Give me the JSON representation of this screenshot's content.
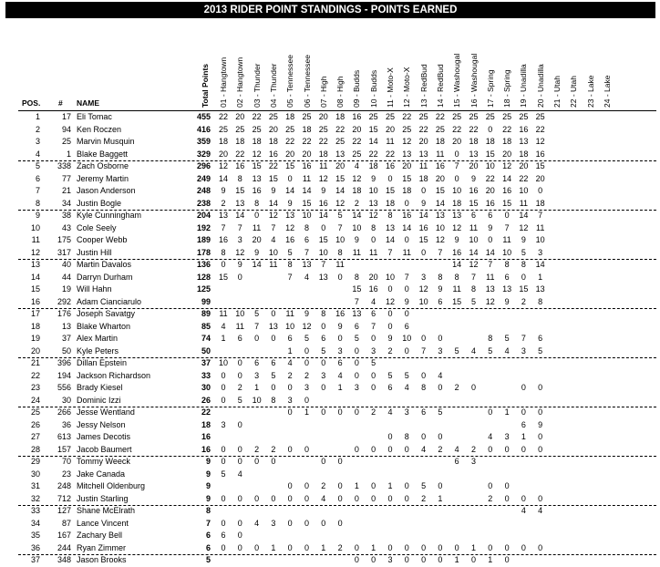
{
  "title": "2013 RIDER POINT STANDINGS  - POINTS EARNED",
  "headers": {
    "pos": "POS.",
    "num": "#",
    "name": "NAME",
    "total": "Total Points"
  },
  "rounds": [
    "01 - Hangtown",
    "02 - Hangtown",
    "03 - Thunder",
    "04 - Thunder",
    "05 - Tennessee",
    "06 - Tennessee",
    "07 - High",
    "08 - High",
    "09 - Budds",
    "10 - Budds",
    "11 - Moto-X",
    "12 - Moto-X",
    "13 - RedBud",
    "14 - RedBud",
    "15 - Washougal",
    "16 - Washougal",
    "17 - Spring",
    "18 - Spring",
    "19 - Unadilla",
    "20 - Unadilla",
    "21 - Utah",
    "22 - Utah",
    "23 - Lake",
    "24 - Lake"
  ],
  "riders": [
    {
      "pos": "1",
      "num": "17",
      "name": "Eli Tomac",
      "total": "455",
      "pts": [
        22,
        20,
        22,
        25,
        18,
        25,
        20,
        18,
        16,
        25,
        25,
        22,
        25,
        22,
        25,
        25,
        25,
        25,
        25,
        25
      ]
    },
    {
      "pos": "2",
      "num": "94",
      "name": "Ken Roczen",
      "total": "416",
      "pts": [
        25,
        25,
        25,
        20,
        25,
        18,
        25,
        22,
        20,
        15,
        20,
        25,
        22,
        25,
        22,
        22,
        0,
        22,
        16,
        22
      ]
    },
    {
      "pos": "3",
      "num": "25",
      "name": "Marvin Musquin",
      "total": "359",
      "pts": [
        18,
        18,
        18,
        18,
        22,
        22,
        22,
        25,
        22,
        14,
        11,
        12,
        20,
        18,
        20,
        18,
        18,
        18,
        13,
        12
      ]
    },
    {
      "pos": "4",
      "num": "1",
      "name": "Blake Baggett",
      "total": "329",
      "pts": [
        20,
        22,
        12,
        16,
        20,
        20,
        18,
        13,
        25,
        22,
        22,
        13,
        13,
        11,
        0,
        13,
        15,
        20,
        18,
        16
      ]
    },
    {
      "pos": "5",
      "num": "338",
      "name": "Zach Osborne",
      "total": "296",
      "pts": [
        12,
        16,
        15,
        22,
        15,
        16,
        11,
        20,
        4,
        18,
        16,
        20,
        11,
        16,
        7,
        20,
        10,
        12,
        20,
        15
      ]
    },
    {
      "pos": "6",
      "num": "77",
      "name": "Jeremy Martin",
      "total": "249",
      "pts": [
        14,
        8,
        13,
        15,
        0,
        11,
        12,
        15,
        12,
        9,
        0,
        15,
        18,
        20,
        0,
        9,
        22,
        14,
        22,
        20
      ]
    },
    {
      "pos": "7",
      "num": "21",
      "name": "Jason Anderson",
      "total": "248",
      "pts": [
        9,
        15,
        16,
        9,
        14,
        14,
        9,
        14,
        18,
        10,
        15,
        18,
        0,
        15,
        10,
        16,
        20,
        16,
        10,
        0
      ]
    },
    {
      "pos": "8",
      "num": "34",
      "name": "Justin Bogle",
      "total": "238",
      "pts": [
        2,
        13,
        8,
        14,
        9,
        15,
        16,
        12,
        2,
        13,
        18,
        0,
        9,
        14,
        18,
        15,
        16,
        15,
        11,
        18
      ]
    },
    {
      "pos": "9",
      "num": "38",
      "name": "Kyle Cunningham",
      "total": "204",
      "pts": [
        13,
        14,
        0,
        12,
        13,
        10,
        14,
        5,
        14,
        12,
        8,
        16,
        14,
        13,
        13,
        6,
        6,
        0,
        14,
        7
      ]
    },
    {
      "pos": "10",
      "num": "43",
      "name": "Cole Seely",
      "total": "192",
      "pts": [
        7,
        7,
        11,
        7,
        12,
        8,
        0,
        7,
        10,
        8,
        13,
        14,
        16,
        10,
        12,
        11,
        9,
        7,
        12,
        11
      ]
    },
    {
      "pos": "11",
      "num": "175",
      "name": "Cooper Webb",
      "total": "189",
      "pts": [
        16,
        3,
        20,
        4,
        16,
        6,
        15,
        10,
        9,
        0,
        14,
        0,
        15,
        12,
        9,
        10,
        0,
        11,
        9,
        10
      ]
    },
    {
      "pos": "12",
      "num": "317",
      "name": "Justin Hill",
      "total": "178",
      "pts": [
        8,
        12,
        9,
        10,
        5,
        7,
        10,
        8,
        11,
        11,
        7,
        11,
        0,
        7,
        16,
        14,
        14,
        10,
        5,
        3
      ]
    },
    {
      "pos": "13",
      "num": "40",
      "name": "Martin Davalos",
      "total": "136",
      "pts": [
        0,
        9,
        14,
        11,
        8,
        13,
        7,
        11,
        null,
        null,
        null,
        null,
        null,
        null,
        14,
        12,
        7,
        8,
        8,
        14
      ]
    },
    {
      "pos": "14",
      "num": "44",
      "name": "Darryn Durham",
      "total": "128",
      "pts": [
        15,
        0,
        null,
        null,
        7,
        4,
        13,
        0,
        8,
        20,
        10,
        7,
        3,
        8,
        8,
        7,
        11,
        6,
        0,
        1
      ]
    },
    {
      "pos": "15",
      "num": "19",
      "name": "Will Hahn",
      "total": "125",
      "pts": [
        null,
        null,
        null,
        null,
        null,
        null,
        null,
        null,
        15,
        16,
        0,
        0,
        12,
        9,
        11,
        8,
        13,
        13,
        15,
        13
      ]
    },
    {
      "pos": "16",
      "num": "292",
      "name": "Adam Cianciarulo",
      "total": "99",
      "pts": [
        null,
        null,
        null,
        null,
        null,
        null,
        null,
        null,
        7,
        4,
        12,
        9,
        10,
        6,
        15,
        5,
        12,
        9,
        2,
        8
      ]
    },
    {
      "pos": "17",
      "num": "176",
      "name": "Joseph Savatgy",
      "total": "89",
      "pts": [
        11,
        10,
        5,
        0,
        11,
        9,
        8,
        16,
        13,
        6,
        0,
        0
      ]
    },
    {
      "pos": "18",
      "num": "13",
      "name": "Blake Wharton",
      "total": "85",
      "pts": [
        4,
        11,
        7,
        13,
        10,
        12,
        0,
        9,
        6,
        7,
        0,
        6
      ]
    },
    {
      "pos": "19",
      "num": "37",
      "name": "Alex Martin",
      "total": "74",
      "pts": [
        1,
        6,
        0,
        0,
        6,
        5,
        6,
        0,
        5,
        0,
        9,
        10,
        0,
        0,
        null,
        null,
        8,
        5,
        7,
        6
      ]
    },
    {
      "pos": "20",
      "num": "50",
      "name": "Kyle Peters",
      "total": "50",
      "pts": [
        null,
        null,
        null,
        null,
        1,
        0,
        5,
        3,
        0,
        3,
        2,
        0,
        7,
        3,
        5,
        4,
        5,
        4,
        3,
        5
      ]
    },
    {
      "pos": "21",
      "num": "396",
      "name": "Dillan Epstein",
      "total": "37",
      "pts": [
        10,
        0,
        6,
        6,
        4,
        0,
        0,
        6,
        0,
        5
      ]
    },
    {
      "pos": "22",
      "num": "194",
      "name": "Jackson Richardson",
      "total": "33",
      "pts": [
        0,
        0,
        3,
        5,
        2,
        2,
        3,
        4,
        0,
        0,
        5,
        5,
        0,
        4
      ]
    },
    {
      "pos": "23",
      "num": "556",
      "name": "Brady Kiesel",
      "total": "30",
      "pts": [
        0,
        2,
        1,
        0,
        0,
        3,
        0,
        1,
        3,
        0,
        6,
        4,
        8,
        0,
        2,
        0,
        null,
        null,
        0,
        0
      ]
    },
    {
      "pos": "24",
      "num": "30",
      "name": "Dominic Izzi",
      "total": "26",
      "pts": [
        0,
        5,
        10,
        8,
        3,
        0
      ]
    },
    {
      "pos": "25",
      "num": "266",
      "name": "Jesse Wentland",
      "total": "22",
      "pts": [
        null,
        null,
        null,
        null,
        0,
        1,
        0,
        0,
        0,
        2,
        4,
        3,
        6,
        5,
        null,
        null,
        0,
        1,
        0,
        0
      ]
    },
    {
      "pos": "26",
      "num": "36",
      "name": "Jessy Nelson",
      "total": "18",
      "pts": [
        3,
        0,
        null,
        null,
        null,
        null,
        null,
        null,
        null,
        null,
        null,
        null,
        null,
        null,
        null,
        null,
        null,
        null,
        6,
        9
      ]
    },
    {
      "pos": "27",
      "num": "613",
      "name": "James Decotis",
      "total": "16",
      "pts": [
        null,
        null,
        null,
        null,
        null,
        null,
        null,
        null,
        null,
        null,
        0,
        8,
        0,
        0,
        null,
        null,
        4,
        3,
        1,
        0
      ]
    },
    {
      "pos": "28",
      "num": "157",
      "name": "Jacob Baumert",
      "total": "16",
      "pts": [
        0,
        0,
        2,
        2,
        0,
        0,
        null,
        null,
        0,
        0,
        0,
        0,
        4,
        2,
        4,
        2,
        0,
        0,
        0,
        0
      ]
    },
    {
      "pos": "29",
      "num": "70",
      "name": "Tommy Weeck",
      "total": "9",
      "pts": [
        0,
        0,
        0,
        0,
        null,
        null,
        0,
        0,
        null,
        null,
        null,
        null,
        null,
        null,
        6,
        3
      ]
    },
    {
      "pos": "30",
      "num": "23",
      "name": "Jake Canada",
      "total": "9",
      "pts": [
        5,
        4
      ]
    },
    {
      "pos": "31",
      "num": "248",
      "name": "Mitchell Oldenburg",
      "total": "9",
      "pts": [
        null,
        null,
        null,
        null,
        0,
        0,
        2,
        0,
        1,
        0,
        1,
        0,
        5,
        0,
        null,
        null,
        0,
        0
      ]
    },
    {
      "pos": "32",
      "num": "712",
      "name": "Justin Starling",
      "total": "9",
      "pts": [
        0,
        0,
        0,
        0,
        0,
        0,
        4,
        0,
        0,
        0,
        0,
        0,
        2,
        1,
        null,
        null,
        2,
        0,
        0,
        0
      ]
    },
    {
      "pos": "33",
      "num": "127",
      "name": "Shane McElrath",
      "total": "8",
      "pts": [
        null,
        null,
        null,
        null,
        null,
        null,
        null,
        null,
        null,
        null,
        null,
        null,
        null,
        null,
        null,
        null,
        null,
        null,
        4,
        4
      ]
    },
    {
      "pos": "34",
      "num": "87",
      "name": "Lance Vincent",
      "total": "7",
      "pts": [
        0,
        0,
        4,
        3,
        0,
        0,
        0,
        0
      ]
    },
    {
      "pos": "35",
      "num": "167",
      "name": "Zachary Bell",
      "total": "6",
      "pts": [
        6,
        0
      ]
    },
    {
      "pos": "36",
      "num": "244",
      "name": "Ryan Zimmer",
      "total": "6",
      "pts": [
        0,
        0,
        0,
        1,
        0,
        0,
        1,
        2,
        0,
        1,
        0,
        0,
        0,
        0,
        0,
        1,
        0,
        0,
        0,
        0
      ]
    },
    {
      "pos": "37",
      "num": "348",
      "name": "Jason Brooks",
      "total": "5",
      "pts": [
        null,
        null,
        null,
        null,
        null,
        null,
        null,
        null,
        0,
        0,
        3,
        0,
        0,
        0,
        1,
        0,
        1,
        0
      ]
    }
  ]
}
